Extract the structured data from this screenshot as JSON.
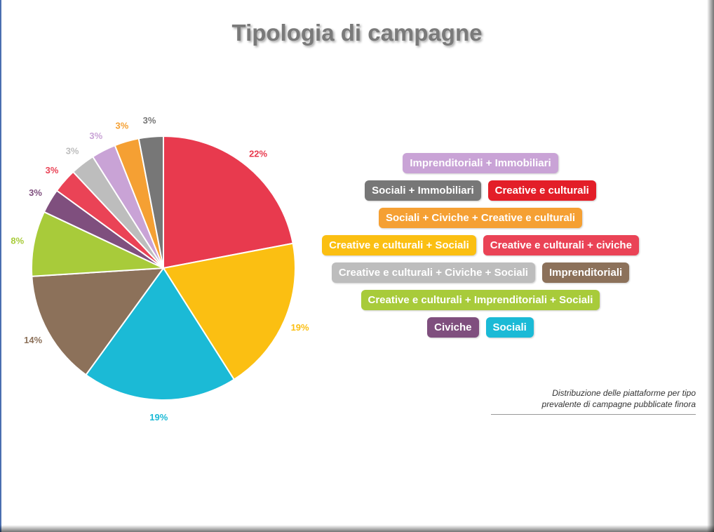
{
  "chart_data": {
    "type": "pie",
    "title": "Tipologia di campagne",
    "slices": [
      {
        "value": 22,
        "label": "22%",
        "color": "#e83a4e"
      },
      {
        "value": 19,
        "label": "19%",
        "color": "#fbbf12"
      },
      {
        "value": 19,
        "label": "19%",
        "color": "#1bbad6"
      },
      {
        "value": 14,
        "label": "14%",
        "color": "#8c715a"
      },
      {
        "value": 8,
        "label": "8%",
        "color": "#a8cb3a"
      },
      {
        "value": 3,
        "label": "3%",
        "color": "#7f4f7e"
      },
      {
        "value": 3,
        "label": "3%",
        "color": "#ea4356"
      },
      {
        "value": 3,
        "label": "3%",
        "color": "#bdbdbd"
      },
      {
        "value": 3,
        "label": "3%",
        "color": "#c9a3d6"
      },
      {
        "value": 3,
        "label": "3%",
        "color": "#f5a033"
      },
      {
        "value": 3,
        "label": "3%",
        "color": "#777777"
      }
    ],
    "legend": [
      [
        {
          "label": "Imprenditoriali + Immobiliari",
          "color": "#c9a3d6"
        }
      ],
      [
        {
          "label": "Sociali + Immobiliari",
          "color": "#777777"
        },
        {
          "label": "Creative e culturali",
          "color": "#e31e28"
        }
      ],
      [
        {
          "label": "Sociali  + Civiche + Creative e culturali",
          "color": "#f5a033"
        }
      ],
      [
        {
          "label": "Creative e culturali + Sociali",
          "color": "#fbbf12"
        },
        {
          "label": "Creative e culturali + civiche",
          "color": "#ea4356"
        }
      ],
      [
        {
          "label": "Creative e culturali + Civiche + Sociali",
          "color": "#bdbdbd"
        },
        {
          "label": "Imprenditoriali",
          "color": "#8c715a"
        }
      ],
      [
        {
          "label": "Creative e culturali + Imprenditoriali + Sociali",
          "color": "#a8cb3a"
        }
      ],
      [
        {
          "label": "Civiche",
          "color": "#7f4f7e"
        },
        {
          "label": "Sociali",
          "color": "#1bbad6"
        }
      ]
    ]
  },
  "note": {
    "line1": "Distribuzione delle piattaforme per tipo",
    "line2": "prevalente di campagne pubblicate finora"
  }
}
